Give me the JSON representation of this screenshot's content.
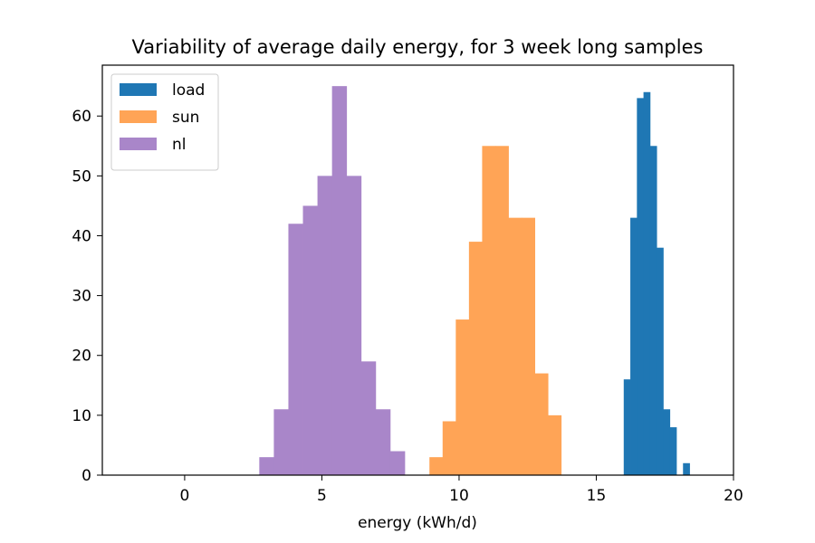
{
  "chart_data": {
    "type": "bar",
    "title": "Variability of average daily energy, for 3 week long samples",
    "xlabel": "energy (kWh/d)",
    "ylabel": "",
    "xlim": [
      -3.0,
      20.0
    ],
    "ylim": [
      0,
      68.5
    ],
    "xticks": [
      0,
      5,
      10,
      15,
      20
    ],
    "yticks": [
      0,
      10,
      20,
      30,
      40,
      50,
      60
    ],
    "legend": "top-left",
    "grid": false,
    "series": [
      {
        "name": "load",
        "color": "#1f77b4",
        "edges": [
          16.0,
          16.24,
          16.48,
          16.72,
          16.96,
          17.2,
          17.44,
          17.68,
          17.92,
          18.16,
          18.4
        ],
        "values": [
          16,
          43,
          63,
          64,
          55,
          38,
          11,
          8,
          0,
          2
        ]
      },
      {
        "name": "sun",
        "color": "#ffa456",
        "edges": [
          8.92,
          9.4,
          9.88,
          10.36,
          10.84,
          11.32,
          11.8,
          12.28,
          12.76,
          13.24,
          13.72
        ],
        "values": [
          3,
          9,
          26,
          39,
          55,
          55,
          43,
          43,
          17,
          10
        ]
      },
      {
        "name": "nl",
        "color": "#a986c9",
        "edges": [
          2.72,
          3.25,
          3.78,
          4.31,
          4.84,
          5.37,
          5.9,
          6.43,
          6.96,
          7.49,
          8.02
        ],
        "values": [
          3,
          11,
          42,
          45,
          50,
          65,
          50,
          19,
          11,
          4
        ]
      }
    ]
  }
}
